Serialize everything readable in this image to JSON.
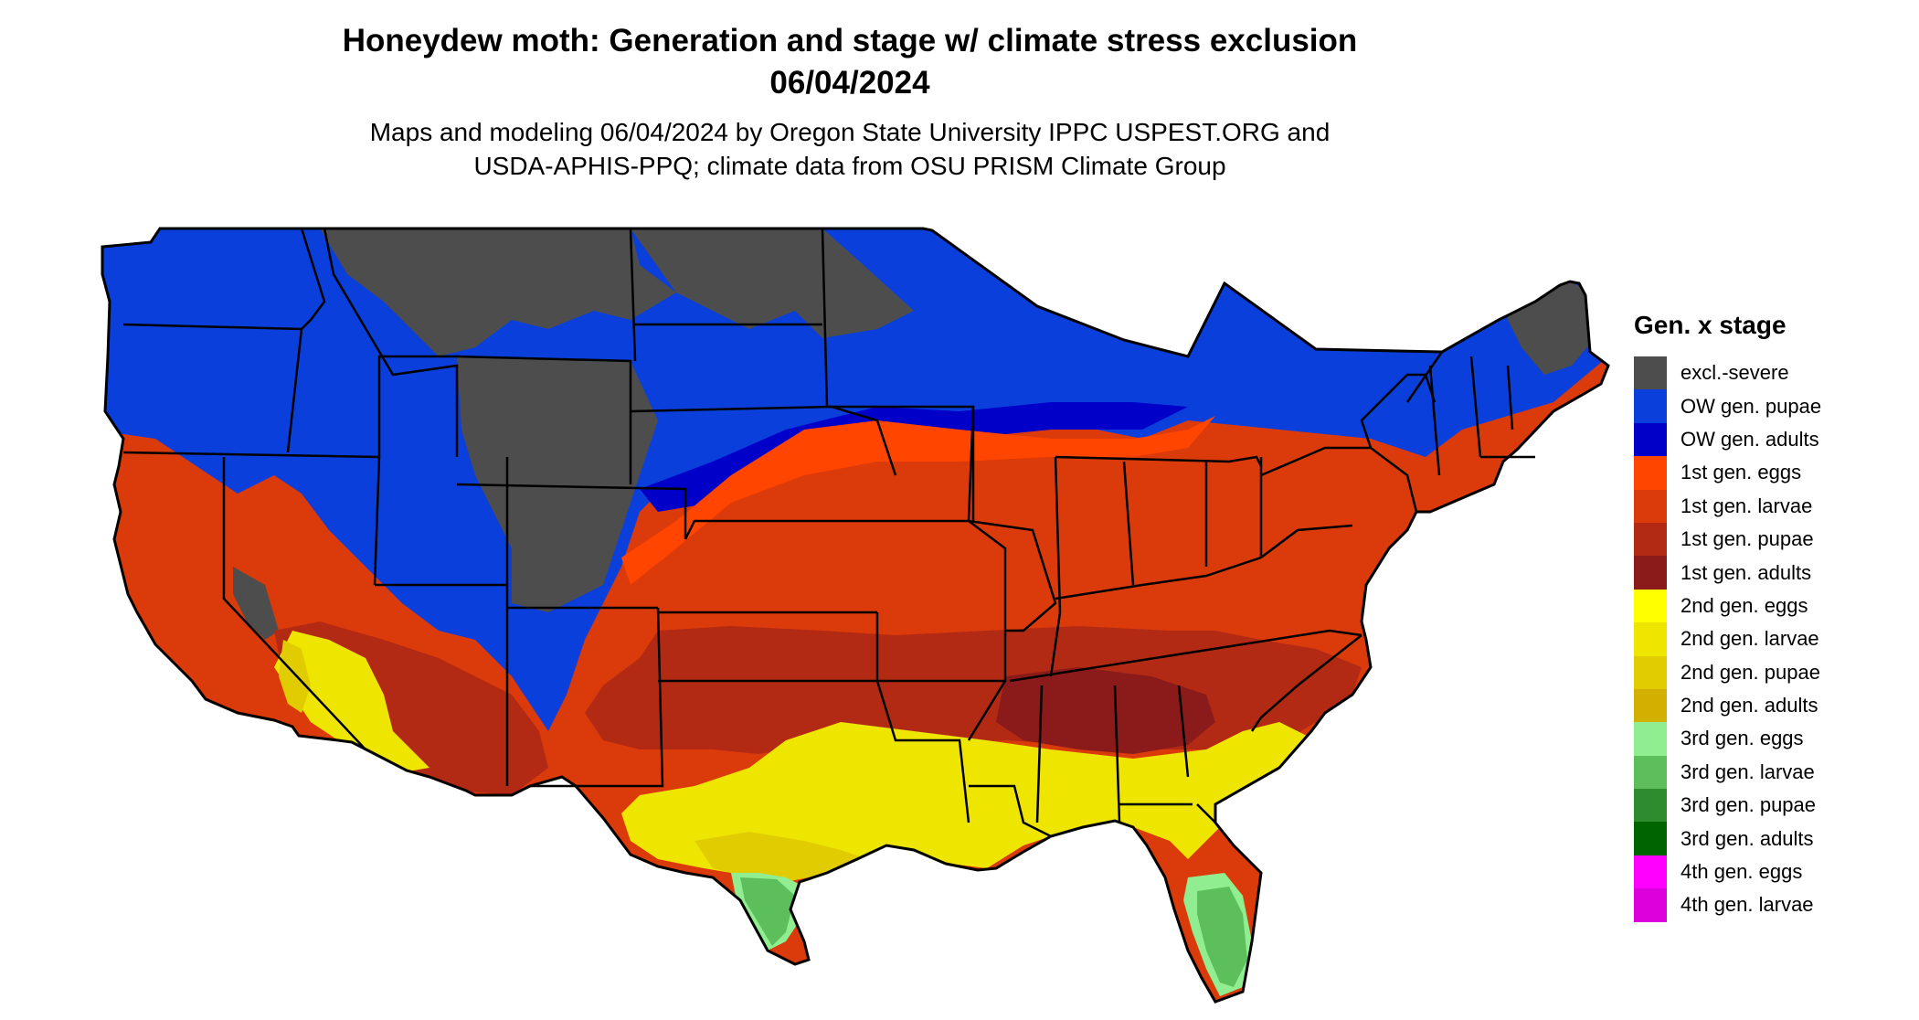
{
  "title": {
    "line1": "Honeydew moth: Generation and stage w/ climate stress exclusion",
    "line2": "06/04/2024"
  },
  "subtitle": {
    "line1": "Maps and modeling 06/04/2024 by Oregon State University IPPC USPEST.ORG and",
    "line2": "USDA-APHIS-PPQ; climate data from OSU PRISM Climate Group"
  },
  "legend": {
    "title": "Gen. x stage",
    "items": [
      {
        "label": "excl.-severe",
        "color": "#4d4d4d"
      },
      {
        "label": "OW gen. pupae",
        "color": "#0a3fdc"
      },
      {
        "label": "OW gen. adults",
        "color": "#0000c8"
      },
      {
        "label": "1st gen. eggs",
        "color": "#ff4500"
      },
      {
        "label": "1st gen. larvae",
        "color": "#db3a0a"
      },
      {
        "label": "1st gen. pupae",
        "color": "#b32a14"
      },
      {
        "label": "1st gen. adults",
        "color": "#8b1a1a"
      },
      {
        "label": "2nd gen. eggs",
        "color": "#ffff00"
      },
      {
        "label": "2nd gen. larvae",
        "color": "#eee600"
      },
      {
        "label": "2nd gen. pupae",
        "color": "#e0cc00"
      },
      {
        "label": "2nd gen. adults",
        "color": "#d1b000"
      },
      {
        "label": "3rd gen. eggs",
        "color": "#90ee90"
      },
      {
        "label": "3rd gen. larvae",
        "color": "#5cbf5c"
      },
      {
        "label": "3rd gen. pupae",
        "color": "#2e8b2e"
      },
      {
        "label": "3rd gen. adults",
        "color": "#006400"
      },
      {
        "label": "4th gen. eggs",
        "color": "#ff00ff"
      },
      {
        "label": "4th gen. larvae",
        "color": "#dd00dd"
      }
    ]
  }
}
